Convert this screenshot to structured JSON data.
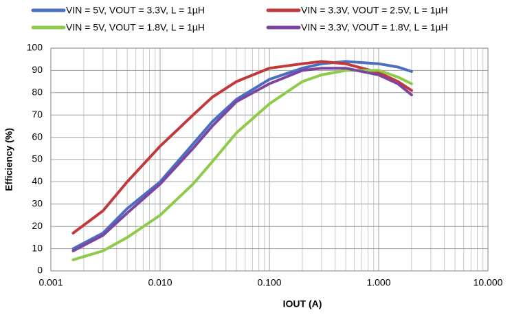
{
  "chart_data": {
    "type": "line",
    "xlabel": "IOUT (A)",
    "ylabel": "Efficiency (%)",
    "xlog": true,
    "grid": true,
    "minor_grid": true,
    "xlim": [
      0.001,
      10
    ],
    "xticks": [
      0.001,
      {
        "value": 0.01,
        "label": "0.010"
      },
      {
        "value": 0.1,
        "label": "0.100"
      },
      {
        "value": 1,
        "label": "1.000"
      },
      {
        "value": 10,
        "label": "10.000"
      }
    ],
    "ylim": [
      0,
      100
    ],
    "yticks": [
      0,
      10,
      20,
      30,
      40,
      50,
      60,
      70,
      80,
      90,
      100
    ],
    "x": [
      0.0016,
      0.003,
      0.005,
      0.01,
      0.02,
      0.03,
      0.05,
      0.1,
      0.2,
      0.3,
      0.5,
      1,
      1.5,
      2
    ],
    "series": [
      {
        "name": "VIN = 5V, VOUT = 3.3V, L = 1µH",
        "color": "#4a6fc1",
        "values": [
          10,
          17,
          28,
          40,
          57,
          67,
          77,
          86,
          91,
          93,
          94,
          93,
          91.5,
          89.5
        ]
      },
      {
        "name": "VIN = 3.3V, VOUT = 2.5V, L = 1µH",
        "color": "#c0393b",
        "values": [
          17,
          27,
          40,
          56,
          70,
          78,
          85,
          91,
          93,
          94,
          93,
          89,
          85,
          81
        ]
      },
      {
        "name": "VIN = 5V, VOUT = 1.8V, L = 1µH",
        "color": "#8ecb4a",
        "values": [
          5,
          9,
          15,
          25,
          39,
          49,
          62,
          75,
          85,
          88,
          90,
          90,
          87,
          84
        ]
      },
      {
        "name": "VIN = 3.3V, VOUT = 1.8V, L = 1µH",
        "color": "#7d45a0",
        "values": [
          9,
          16,
          26,
          39,
          55,
          65,
          76,
          84,
          90,
          91,
          91,
          88,
          84,
          79
        ]
      }
    ]
  }
}
